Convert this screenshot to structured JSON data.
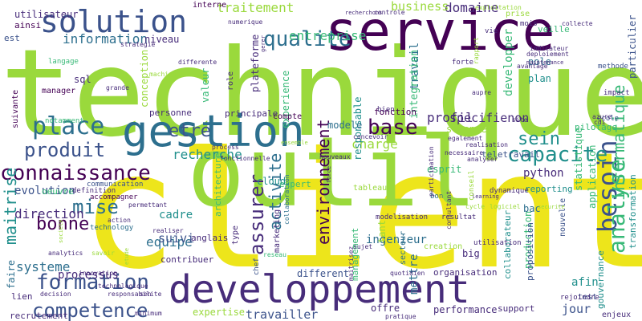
{
  "colors": {
    "background": "#ffffff",
    "palette": {
      "yellow": "#ede51b",
      "lime": "#9ad93c",
      "green": "#38b977",
      "teal": "#208f8c",
      "blue": "#2d6f8e",
      "indigo": "#3b528b",
      "purple": "#472c7a",
      "dark": "#440154"
    }
  },
  "words": [
    {
      "text": "technique",
      "color": "lime"
    },
    {
      "text": "client",
      "color": "yellow"
    },
    {
      "text": "outil",
      "color": "lime"
    },
    {
      "text": "service",
      "color": "dark"
    },
    {
      "text": "gestion",
      "color": "blue"
    },
    {
      "text": "developpement",
      "color": "purple"
    },
    {
      "text": "solution",
      "color": "indigo"
    },
    {
      "text": "qualite",
      "color": "blue"
    },
    {
      "text": "place",
      "color": "blue"
    },
    {
      "text": "connaissance",
      "color": "dark"
    },
    {
      "text": "produit",
      "color": "indigo"
    },
    {
      "text": "formation",
      "color": "indigo"
    },
    {
      "text": "competence",
      "color": "indigo"
    },
    {
      "text": "besoin",
      "color": "indigo"
    },
    {
      "text": "analyse",
      "color": "green"
    },
    {
      "text": "capacite",
      "color": "teal"
    },
    {
      "text": "base",
      "color": "dark"
    },
    {
      "text": "sein",
      "color": "teal"
    },
    {
      "text": "mise",
      "color": "blue"
    },
    {
      "text": "bonne",
      "color": "dark"
    },
    {
      "text": "etre",
      "color": "indigo"
    },
    {
      "text": "assurer",
      "color": "purple"
    },
    {
      "text": "environnement",
      "color": "dark"
    },
    {
      "text": "activite",
      "color": "blue"
    },
    {
      "text": "information",
      "color": "blue"
    },
    {
      "text": "entreprise",
      "color": "green"
    },
    {
      "text": "traitement",
      "color": "lime"
    },
    {
      "text": "domaine",
      "color": "purple"
    },
    {
      "text": "business",
      "color": "lime"
    },
    {
      "text": "maitrise",
      "color": "teal"
    },
    {
      "text": "recherche",
      "color": "teal"
    },
    {
      "text": "specifienon",
      "color": "purple"
    },
    {
      "text": "profil",
      "color": "purple"
    },
    {
      "text": "charge",
      "color": "lime"
    },
    {
      "text": "systeme",
      "color": "blue"
    },
    {
      "text": "direction",
      "color": "purple"
    },
    {
      "text": "equipe",
      "color": "blue"
    },
    {
      "text": "travailler",
      "color": "indigo"
    },
    {
      "text": "python",
      "color": "purple"
    },
    {
      "text": "informatique",
      "color": "green"
    },
    {
      "text": "mettre",
      "color": "blue"
    },
    {
      "text": "ingenieur",
      "color": "blue"
    },
    {
      "text": "jour",
      "color": "indigo"
    },
    {
      "text": "afin",
      "color": "teal"
    },
    {
      "text": "processus",
      "color": "purple"
    },
    {
      "text": "suivi",
      "color": "indigo"
    },
    {
      "text": "cadre",
      "color": "teal"
    },
    {
      "text": "evolution",
      "color": "indigo"
    },
    {
      "text": "oeuvre",
      "color": "green"
    },
    {
      "text": "sql",
      "color": "purple"
    },
    {
      "text": "travail",
      "color": "blue"
    },
    {
      "text": "developper",
      "color": "green"
    },
    {
      "text": "pole",
      "color": "blue"
    },
    {
      "text": "plan",
      "color": "teal"
    },
    {
      "text": "integration",
      "color": "green"
    },
    {
      "text": "responsable",
      "color": "teal"
    },
    {
      "text": "valeur",
      "color": "green"
    },
    {
      "text": "niveau",
      "color": "purple"
    },
    {
      "text": "conception",
      "color": "lime"
    },
    {
      "text": "plateforme",
      "color": "purple"
    },
    {
      "text": "experience",
      "color": "green"
    },
    {
      "text": "modele",
      "color": "blue"
    },
    {
      "text": "science",
      "color": "lime"
    },
    {
      "text": "fonction",
      "color": "dark"
    },
    {
      "text": "teletravail",
      "color": "indigo"
    },
    {
      "text": "reporting",
      "color": "teal"
    },
    {
      "text": "bac",
      "color": "blue"
    },
    {
      "text": "application",
      "color": "green"
    },
    {
      "text": "tant",
      "color": "lime"
    },
    {
      "text": "expertise",
      "color": "lime"
    },
    {
      "text": "performance",
      "color": "purple"
    },
    {
      "text": "different",
      "color": "indigo"
    },
    {
      "text": "organisation",
      "color": "purple"
    },
    {
      "text": "production",
      "color": "green"
    },
    {
      "text": "collaborateur",
      "color": "teal"
    },
    {
      "text": "proposition",
      "color": "indigo"
    },
    {
      "text": "faire",
      "color": "blue"
    },
    {
      "text": "lien",
      "color": "purple"
    },
    {
      "text": "recrutement",
      "color": "purple"
    },
    {
      "text": "architecture",
      "color": "green"
    },
    {
      "text": "marketing",
      "color": "purple"
    },
    {
      "text": "cloud",
      "color": "teal"
    },
    {
      "text": "esprit",
      "color": "green"
    },
    {
      "text": "expert",
      "color": "green"
    },
    {
      "text": "big",
      "color": "purple"
    },
    {
      "text": "secteur",
      "color": "blue"
    },
    {
      "text": "gouvernance",
      "color": "teal"
    },
    {
      "text": "statistique",
      "color": "green"
    },
    {
      "text": "pilotage",
      "color": "green"
    },
    {
      "text": "nouvelle",
      "color": "indigo"
    },
    {
      "text": "management",
      "color": "green"
    },
    {
      "text": "transformation",
      "color": "teal"
    },
    {
      "text": "particulier",
      "color": "indigo"
    },
    {
      "text": "utilisateur",
      "color": "purple"
    },
    {
      "text": "ainsi",
      "color": "dark"
    },
    {
      "text": "est",
      "color": "indigo"
    },
    {
      "text": "langage",
      "color": "green"
    },
    {
      "text": "manager",
      "color": "dark"
    },
    {
      "text": "personne",
      "color": "purple"
    },
    {
      "text": "notamment",
      "color": "green"
    },
    {
      "text": "definition",
      "color": "purple"
    },
    {
      "text": "communication",
      "color": "indigo"
    },
    {
      "text": "technology",
      "color": "blue"
    },
    {
      "text": "accompagner",
      "color": "dark"
    },
    {
      "text": "anglais",
      "color": "purple"
    },
    {
      "text": "contribuer",
      "color": "purple"
    },
    {
      "text": "type",
      "color": "purple"
    },
    {
      "text": "compte",
      "color": "dark"
    },
    {
      "text": "principale",
      "color": "purple"
    },
    {
      "text": "role",
      "color": "purple"
    },
    {
      "text": "veille",
      "color": "green"
    },
    {
      "text": "prise",
      "color": "lime"
    },
    {
      "text": "interne",
      "color": "dark"
    },
    {
      "text": "suivante",
      "color": "dark"
    },
    {
      "text": "creation",
      "color": "lime"
    },
    {
      "text": "tableau",
      "color": "lime"
    },
    {
      "text": "bon",
      "color": "blue"
    },
    {
      "text": "mois",
      "color": "purple"
    },
    {
      "text": "vie",
      "color": "purple"
    },
    {
      "text": "bien",
      "color": "purple"
    },
    {
      "text": "forte",
      "color": "purple"
    },
    {
      "text": "methode",
      "color": "indigo"
    },
    {
      "text": "impact",
      "color": "purple"
    },
    {
      "text": "ecole",
      "color": "indigo"
    },
    {
      "text": "sujet",
      "color": "purple"
    },
    {
      "text": "resultat",
      "color": "purple"
    },
    {
      "text": "modelisation",
      "color": "purple"
    },
    {
      "text": "test",
      "color": "indigo"
    },
    {
      "text": "enjeux",
      "color": "purple"
    },
    {
      "text": "support",
      "color": "purple"
    },
    {
      "text": "offre",
      "color": "purple"
    },
    {
      "text": "rejoindre",
      "color": "purple"
    },
    {
      "text": "pratique",
      "color": "purple"
    },
    {
      "text": "quotidien",
      "color": "purple"
    },
    {
      "text": "chef",
      "color": "indigo"
    },
    {
      "text": "reseau",
      "color": "green"
    },
    {
      "text": "collaboration",
      "color": "blue"
    },
    {
      "text": "process",
      "color": "purple"
    },
    {
      "text": "fonctionnelle",
      "color": "purple"
    },
    {
      "text": "realiser",
      "color": "purple"
    },
    {
      "text": "action",
      "color": "purple"
    },
    {
      "text": "analytics",
      "color": "purple"
    },
    {
      "text": "savoir",
      "color": "lime"
    },
    {
      "text": "innovation",
      "color": "purple"
    },
    {
      "text": "decision",
      "color": "purple"
    },
    {
      "text": "technologique",
      "color": "purple"
    },
    {
      "text": "responsabilite",
      "color": "purple"
    },
    {
      "text": "sen",
      "color": "purple"
    },
    {
      "text": "minimum",
      "color": "purple"
    },
    {
      "text": "permettant",
      "color": "purple"
    },
    {
      "text": "societe",
      "color": "lime"
    },
    {
      "text": "grande",
      "color": "purple"
    },
    {
      "text": "machine",
      "color": "lime"
    },
    {
      "text": "differente",
      "color": "purple"
    },
    {
      "text": "strategie",
      "color": "purple"
    },
    {
      "text": "numerique",
      "color": "purple"
    },
    {
      "text": "gerer",
      "color": "purple"
    },
    {
      "text": "controle",
      "color": "purple"
    },
    {
      "text": "recherchons",
      "color": "purple"
    },
    {
      "text": "exploitation",
      "color": "lime"
    },
    {
      "text": "collecte",
      "color": "purple"
    },
    {
      "text": "indicateur",
      "color": "purple"
    },
    {
      "text": "deploiement",
      "color": "purple"
    },
    {
      "text": "maintenance",
      "color": "purple"
    },
    {
      "text": "avantage",
      "color": "purple"
    },
    {
      "text": "aupre",
      "color": "purple"
    },
    {
      "text": "rapport",
      "color": "lime"
    },
    {
      "text": "cdi",
      "color": "purple"
    },
    {
      "text": "azure",
      "color": "purple"
    },
    {
      "text": "site",
      "color": "purple"
    },
    {
      "text": "realisation",
      "color": "purple"
    },
    {
      "text": "egalement",
      "color": "purple"
    },
    {
      "text": "concevoir",
      "color": "purple"
    },
    {
      "text": "necessaire",
      "color": "purple"
    },
    {
      "text": "analyser",
      "color": "purple"
    },
    {
      "text": "dynamique",
      "color": "purple"
    },
    {
      "text": "learning",
      "color": "purple"
    },
    {
      "text": "logiciel",
      "color": "lime"
    },
    {
      "text": "conseil",
      "color": "lime"
    },
    {
      "text": "nouveaux",
      "color": "purple"
    },
    {
      "text": "maitrisez",
      "color": "purple"
    },
    {
      "text": "participation",
      "color": "purple"
    },
    {
      "text": "utilisation",
      "color": "purple"
    },
    {
      "text": "securite",
      "color": "lime"
    },
    {
      "text": "cycle",
      "color": "lime"
    },
    {
      "text": "etude",
      "color": "lime"
    },
    {
      "text": "ensemble",
      "color": "lime"
    },
    {
      "text": "consultant",
      "color": "purple"
    },
    {
      "text": "force",
      "color": "purple"
    },
    {
      "text": "temps",
      "color": "lime"
    },
    {
      "text": "partenaire",
      "color": "lime"
    },
    {
      "text": "acteur",
      "color": "lime"
    },
    {
      "text": "demarche",
      "color": "purple"
    }
  ]
}
